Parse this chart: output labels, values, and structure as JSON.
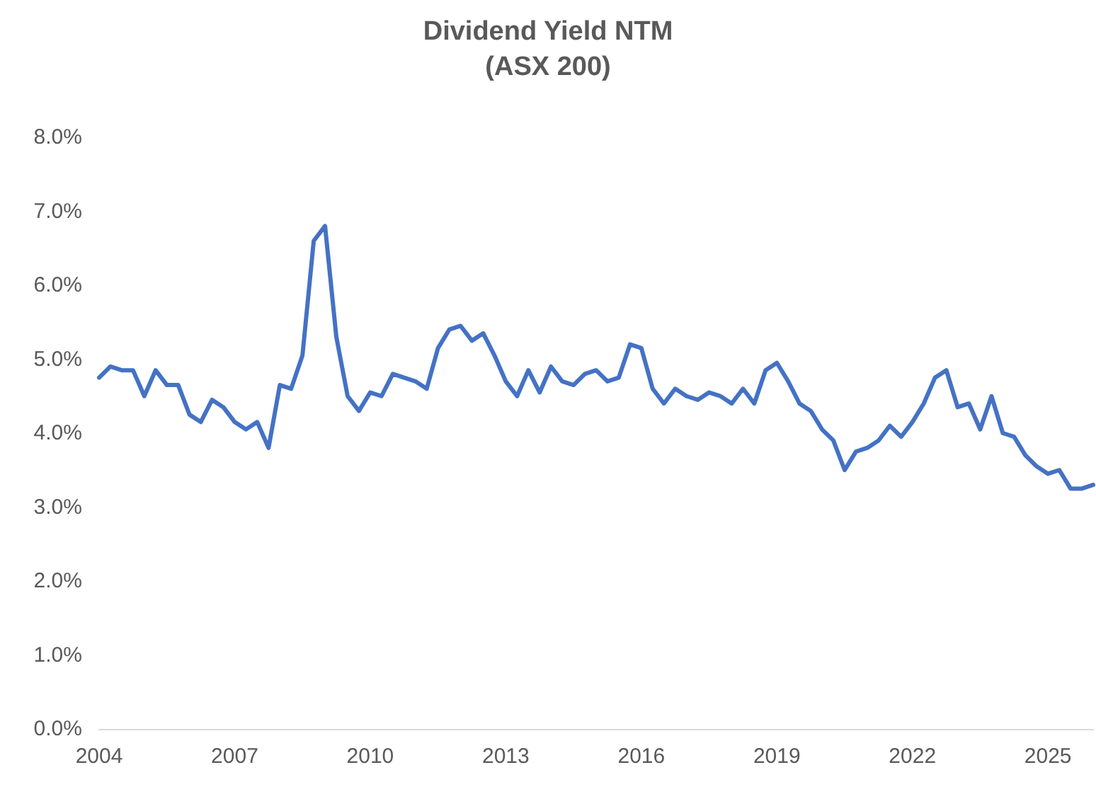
{
  "chart_data": {
    "type": "line",
    "title": "Dividend Yield NTM",
    "subtitle": "(ASX 200)",
    "x": [
      2004,
      2004.25,
      2004.5,
      2004.75,
      2005,
      2005.25,
      2005.5,
      2005.75,
      2006,
      2006.25,
      2006.5,
      2006.75,
      2007,
      2007.25,
      2007.5,
      2007.75,
      2008,
      2008.25,
      2008.5,
      2008.75,
      2009,
      2009.25,
      2009.5,
      2009.75,
      2010,
      2010.25,
      2010.5,
      2010.75,
      2011,
      2011.25,
      2011.5,
      2011.75,
      2012,
      2012.25,
      2012.5,
      2012.75,
      2013,
      2013.25,
      2013.5,
      2013.75,
      2014,
      2014.25,
      2014.5,
      2014.75,
      2015,
      2015.25,
      2015.5,
      2015.75,
      2016,
      2016.25,
      2016.5,
      2016.75,
      2017,
      2017.25,
      2017.5,
      2017.75,
      2018,
      2018.25,
      2018.5,
      2018.75,
      2019,
      2019.25,
      2019.5,
      2019.75,
      2020,
      2020.25,
      2020.5,
      2020.75,
      2021,
      2021.25,
      2021.5,
      2021.75,
      2022,
      2022.25,
      2022.5,
      2022.75,
      2023,
      2023.25,
      2023.5,
      2023.75,
      2024,
      2024.25,
      2024.5,
      2024.75,
      2025,
      2025.25,
      2025.5,
      2025.75,
      2026
    ],
    "series": [
      {
        "color": "#4472c4",
        "values": [
          4.75,
          4.9,
          4.85,
          4.85,
          4.5,
          4.85,
          4.65,
          4.65,
          4.25,
          4.15,
          4.45,
          4.35,
          4.15,
          4.05,
          4.15,
          3.8,
          4.65,
          4.6,
          5.05,
          6.6,
          6.8,
          5.3,
          4.5,
          4.3,
          4.55,
          4.5,
          4.8,
          4.75,
          4.7,
          4.6,
          5.15,
          5.4,
          5.45,
          5.25,
          5.35,
          5.05,
          4.7,
          4.5,
          4.85,
          4.55,
          4.9,
          4.7,
          4.65,
          4.8,
          4.85,
          4.7,
          4.75,
          5.2,
          5.15,
          4.6,
          4.4,
          4.6,
          4.5,
          4.45,
          4.55,
          4.5,
          4.4,
          4.6,
          4.4,
          4.85,
          4.95,
          4.7,
          4.4,
          4.3,
          4.05,
          3.9,
          3.5,
          3.75,
          3.8,
          3.9,
          4.1,
          3.95,
          4.15,
          4.4,
          4.75,
          4.85,
          4.35,
          4.4,
          4.05,
          4.5,
          4.0,
          3.95,
          3.7,
          3.55,
          3.45,
          3.5,
          3.25,
          3.25,
          3.3
        ]
      }
    ],
    "xlim": [
      2004,
      2026
    ],
    "xticks": [
      2004,
      2007,
      2010,
      2013,
      2016,
      2019,
      2022,
      2025
    ],
    "ylim": [
      0,
      8
    ],
    "yticks": [
      {
        "value": 0,
        "label": "0.0%"
      },
      {
        "value": 1,
        "label": "1.0%"
      },
      {
        "value": 2,
        "label": "2.0%"
      },
      {
        "value": 3,
        "label": "3.0%"
      },
      {
        "value": 4,
        "label": "4.0%"
      },
      {
        "value": 5,
        "label": "5.0%"
      },
      {
        "value": 6,
        "label": "6.0%"
      },
      {
        "value": 7,
        "label": "7.0%"
      },
      {
        "value": 8,
        "label": "8.0%"
      }
    ],
    "grid": false,
    "marker": "none",
    "line_style": "solid"
  }
}
